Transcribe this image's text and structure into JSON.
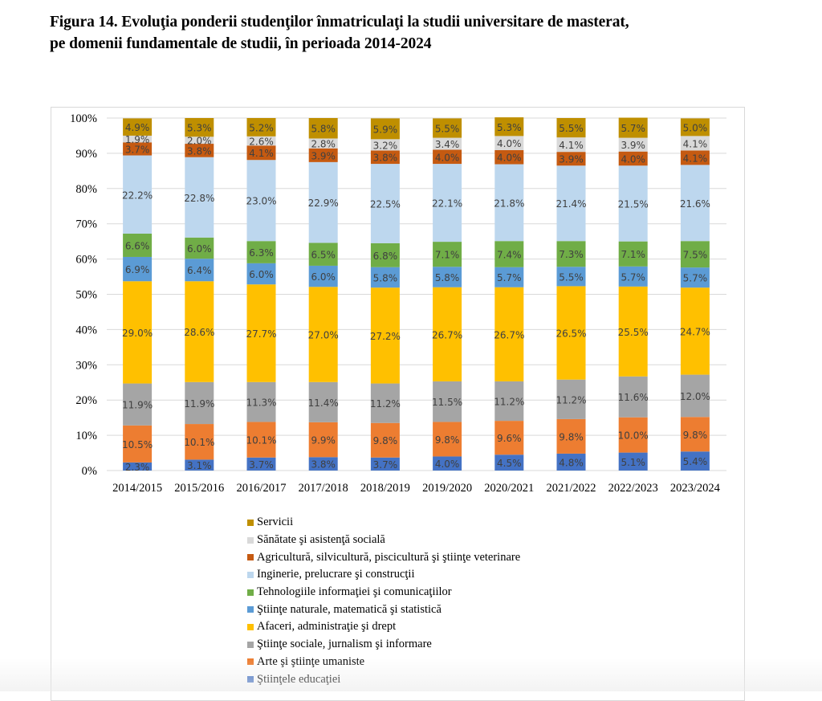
{
  "figure": {
    "title_line1": "Figura 14. Evoluţia ponderii studenţilor înmatriculaţi la studii universitare de masterat,",
    "title_line2": "pe domenii fundamentale de studii, în perioada 2014-2024"
  },
  "chart_data": {
    "type": "bar",
    "stacked": true,
    "percent_stacked": true,
    "title": "Figura 14. Evoluţia ponderii studenţilor înmatriculaţi la studii universitare de masterat, pe domenii fundamentale de studii, în perioada 2014-2024",
    "xlabel": "",
    "ylabel": "",
    "ylim": [
      0,
      100
    ],
    "yticks": [
      "0%",
      "10%",
      "20%",
      "30%",
      "40%",
      "50%",
      "60%",
      "70%",
      "80%",
      "90%",
      "100%"
    ],
    "grid": true,
    "legend_position": "bottom",
    "categories": [
      "2014/2015",
      "2015/2016",
      "2016/2017",
      "2017/2018",
      "2018/2019",
      "2019/2020",
      "2020/2021",
      "2021/2022",
      "2022/2023",
      "2023/2024"
    ],
    "series": [
      {
        "name": "Ştiinţele educaţiei",
        "color": "#4472c4",
        "values": [
          2.3,
          3.1,
          3.7,
          3.8,
          3.7,
          4.0,
          4.5,
          4.8,
          5.1,
          5.4
        ]
      },
      {
        "name": "Arte şi ştiinţe umaniste",
        "color": "#ed7d31",
        "values": [
          10.5,
          10.1,
          10.1,
          9.9,
          9.8,
          9.8,
          9.6,
          9.8,
          10.0,
          9.8
        ]
      },
      {
        "name": "Ştiinţe sociale, jurnalism şi informare",
        "color": "#a5a5a5",
        "values": [
          11.9,
          11.9,
          11.3,
          11.4,
          11.2,
          11.5,
          11.2,
          11.2,
          11.6,
          12.0
        ]
      },
      {
        "name": "Afaceri, administraţie şi drept",
        "color": "#ffc000",
        "values": [
          29.0,
          28.6,
          27.7,
          27.0,
          27.2,
          26.7,
          26.7,
          26.5,
          25.5,
          24.7
        ]
      },
      {
        "name": "Ştiinţe naturale, matematică şi statistică",
        "color": "#5b9bd5",
        "values": [
          6.9,
          6.4,
          6.0,
          6.0,
          5.8,
          5.8,
          5.7,
          5.5,
          5.7,
          5.7
        ]
      },
      {
        "name": "Tehnologiile informaţiei şi comunicaţiilor",
        "color": "#70ad47",
        "values": [
          6.6,
          6.0,
          6.3,
          6.5,
          6.8,
          7.1,
          7.4,
          7.3,
          7.1,
          7.5
        ]
      },
      {
        "name": "Inginerie, prelucrare şi construcţii",
        "color": "#bdd7ee",
        "values": [
          22.2,
          22.8,
          23.0,
          22.9,
          22.5,
          22.1,
          21.8,
          21.4,
          21.5,
          21.6
        ]
      },
      {
        "name": "Agricultură, silvicultură, piscicultură şi ştiinţe veterinare",
        "color": "#c55a11",
        "values": [
          3.7,
          3.8,
          4.1,
          3.9,
          3.8,
          4.0,
          4.0,
          3.9,
          4.0,
          4.1
        ]
      },
      {
        "name": "Sănătate şi asistenţă socială",
        "color": "#d9d9d9",
        "values": [
          1.9,
          2.0,
          2.6,
          2.8,
          3.2,
          3.4,
          4.0,
          4.1,
          3.9,
          4.1
        ]
      },
      {
        "name": "Servicii",
        "color": "#bf8f00",
        "values": [
          4.9,
          5.3,
          5.2,
          5.8,
          5.9,
          5.5,
          5.3,
          5.5,
          5.7,
          5.0
        ]
      }
    ],
    "data_labels_format": "0.0%"
  }
}
